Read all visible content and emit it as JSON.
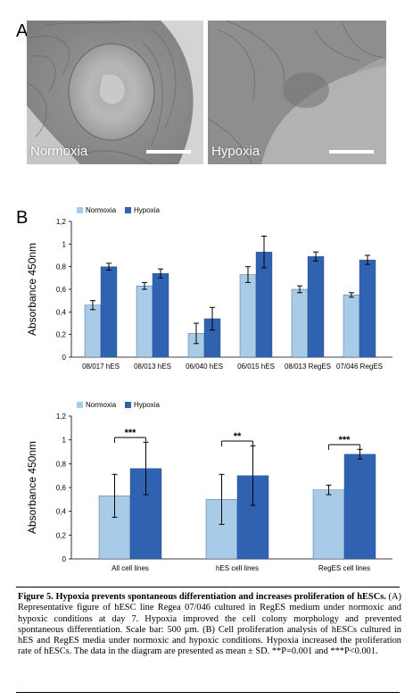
{
  "figure": {
    "panel_a_label": "A",
    "panel_b_label": "B",
    "micrographs": [
      {
        "condition": "Normoxia"
      },
      {
        "condition": "Hypoxia"
      }
    ]
  },
  "chart_data": [
    {
      "type": "bar",
      "ylabel": "Absorbance 450nm",
      "ylim": [
        0,
        1.2
      ],
      "yticks": [
        "0",
        "0,2",
        "0,4",
        "0,6",
        "0,8",
        "1",
        "1,2"
      ],
      "legend_position": "top-left",
      "categories": [
        "08/017 hES",
        "08/013 hES",
        "06/040 hES",
        "06/015 hES",
        "08/013 RegES",
        "07/046 RegES"
      ],
      "series": [
        {
          "name": "Normoxia",
          "color": "#a8cbe8",
          "values": [
            0.46,
            0.63,
            0.21,
            0.73,
            0.6,
            0.55
          ],
          "errors": [
            0.04,
            0.03,
            0.09,
            0.07,
            0.03,
            0.02
          ]
        },
        {
          "name": "Hypoxia",
          "color": "#2f62b0",
          "values": [
            0.8,
            0.74,
            0.34,
            0.93,
            0.89,
            0.86
          ],
          "errors": [
            0.03,
            0.04,
            0.1,
            0.14,
            0.04,
            0.04
          ]
        }
      ],
      "significance": []
    },
    {
      "type": "bar",
      "ylabel": "Absorbance 450nm",
      "ylim": [
        0,
        1.2
      ],
      "yticks": [
        "0",
        "0,2",
        "0,4",
        "0,6",
        "0,8",
        "1",
        "1,2"
      ],
      "legend_position": "top-left",
      "categories": [
        "All cell lines",
        "hES cell lines",
        "RegES cell lines"
      ],
      "series": [
        {
          "name": "Normoxia",
          "color": "#a8cbe8",
          "values": [
            0.53,
            0.5,
            0.58
          ],
          "errors": [
            0.18,
            0.21,
            0.04
          ]
        },
        {
          "name": "Hypoxia",
          "color": "#2f62b0",
          "values": [
            0.76,
            0.7,
            0.88
          ],
          "errors": [
            0.22,
            0.25,
            0.04
          ]
        }
      ],
      "significance": [
        "***",
        "**",
        "***"
      ]
    }
  ],
  "caption": {
    "title": "Figure 5. Hypoxia prevents spontaneous differentiation and increases proliferation of hESCs.",
    "body": "(A) Representative figure of hESC line Regea 07/046 cultured in RegES medium under normoxic and hypoxic conditions at day 7. Hypoxia improved the cell colony morphology and prevented spontaneous differentiation. Scale bar: 500 μm. (B) Cell proliferation analysis of hESCs cultured in hES and RegES media under normoxic and hypoxic conditions. Hypoxia increased the proliferation rate of hESCs. The data in the diagram are presented as mean ± SD. **P=0.001 and ***P<0.001."
  }
}
